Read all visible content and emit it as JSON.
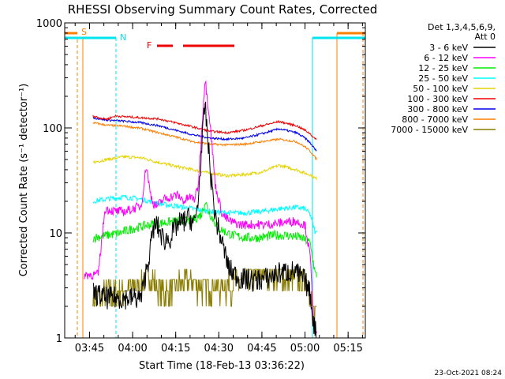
{
  "chart_data": {
    "type": "line",
    "title": "RHESSI Observing Summary Count Rates, Corrected",
    "xlabel": "Start Time (18-Feb-13 03:36:22)",
    "ylabel": "Corrected Count Rate (s⁻¹ detector⁻¹)",
    "y_scale": "log",
    "ylim": [
      1,
      1000
    ],
    "xlim": [
      3.6061,
      5.35
    ],
    "y_ticks": [
      {
        "value": 1,
        "label": "1"
      },
      {
        "value": 10,
        "label": "10"
      },
      {
        "value": 100,
        "label": "100"
      },
      {
        "value": 1000,
        "label": "1000"
      }
    ],
    "x_ticks": [
      {
        "value": 3.75,
        "label": "03:45"
      },
      {
        "value": 4.0,
        "label": "04:00"
      },
      {
        "value": 4.25,
        "label": "04:15"
      },
      {
        "value": 4.5,
        "label": "04:30"
      },
      {
        "value": 4.75,
        "label": "04:45"
      },
      {
        "value": 5.0,
        "label": "05:00"
      },
      {
        "value": 5.25,
        "label": "05:15"
      }
    ],
    "legend_header": [
      "Det 1,3,4,5,6,9,",
      "Att 0"
    ],
    "legend_position": "outside-right",
    "grid": false,
    "markers": [
      {
        "label": "S",
        "color": "#ff7f00"
      },
      {
        "label": "N",
        "color": "#00e5ee"
      },
      {
        "label": "F",
        "color": "#ee0000"
      }
    ],
    "series": [
      {
        "name": "3 - 6 keV",
        "color": "#000000",
        "x": [
          3.77,
          3.84,
          3.97,
          4.05,
          4.08,
          4.1,
          4.12,
          4.14,
          4.18,
          4.22,
          4.26,
          4.3,
          4.33,
          4.36,
          4.38,
          4.4,
          4.42,
          4.45,
          4.48,
          4.52,
          4.56,
          4.62,
          4.7,
          4.78,
          4.86,
          4.94,
          5.0,
          5.03,
          5.05,
          5.07
        ],
        "y": [
          2.7,
          2.4,
          2.4,
          2.4,
          4.5,
          6.5,
          11,
          12,
          8.5,
          9,
          12,
          13,
          14,
          12,
          20,
          60,
          170,
          40,
          14,
          8,
          4.5,
          3.7,
          3.5,
          3.7,
          4.2,
          4.3,
          3.5,
          2.6,
          1.4,
          1.0
        ]
      },
      {
        "name": "6 - 12 keV",
        "color": "#ff00ff",
        "x": [
          3.72,
          3.77,
          3.8,
          3.84,
          3.9,
          3.96,
          4.0,
          4.05,
          4.08,
          4.1,
          4.12,
          4.14,
          4.18,
          4.22,
          4.26,
          4.3,
          4.33,
          4.36,
          4.38,
          4.4,
          4.42,
          4.45,
          4.48,
          4.52,
          4.56,
          4.62,
          4.7,
          4.78,
          4.86,
          4.94,
          5.0,
          5.03,
          5.05,
          5.07
        ],
        "y": [
          4,
          4,
          4,
          17,
          16,
          16,
          17,
          18,
          45,
          25,
          19,
          18,
          21,
          22,
          23,
          20,
          22,
          21,
          28,
          90,
          300,
          110,
          28,
          15,
          13,
          12,
          12,
          12,
          12.5,
          13,
          12,
          6,
          1.4,
          1.0
        ]
      },
      {
        "name": "12 - 25 keV",
        "color": "#00ee00",
        "x": [
          3.77,
          3.85,
          3.93,
          4.0,
          4.05,
          4.1,
          4.18,
          4.26,
          4.34,
          4.4,
          4.42,
          4.45,
          4.5,
          4.58,
          4.66,
          4.74,
          4.82,
          4.9,
          4.98,
          5.03,
          5.06,
          5.07
        ],
        "y": [
          9,
          9.5,
          10,
          11,
          11.5,
          12,
          12.5,
          13,
          13,
          15,
          20,
          15,
          11,
          9.5,
          9,
          9,
          9.5,
          9.5,
          9,
          8,
          4,
          4
        ]
      },
      {
        "name": "25 - 50 keV",
        "color": "#00ffff",
        "x": [
          3.77,
          3.85,
          3.95,
          4.05,
          4.15,
          4.25,
          4.35,
          4.45,
          4.55,
          4.65,
          4.75,
          4.85,
          4.95,
          5.0,
          5.03,
          5.06,
          5.07
        ],
        "y": [
          20,
          21,
          22,
          21,
          19,
          18,
          17,
          16,
          15.5,
          15.5,
          16,
          17,
          17.5,
          17,
          15,
          10,
          10
        ]
      },
      {
        "name": "50 - 100 keV",
        "color": "#e6d400",
        "x": [
          3.77,
          3.85,
          3.95,
          4.05,
          4.15,
          4.25,
          4.35,
          4.45,
          4.55,
          4.65,
          4.75,
          4.85,
          4.95,
          5.0,
          5.03,
          5.06,
          5.07
        ],
        "y": [
          47,
          50,
          53,
          52,
          47,
          43,
          40,
          37,
          35,
          36,
          38,
          44,
          40,
          37,
          36,
          33,
          33
        ]
      },
      {
        "name": "100 - 300 keV",
        "color": "#ee0000",
        "x": [
          3.77,
          3.82,
          3.85,
          3.9,
          3.95,
          4.05,
          4.15,
          4.25,
          4.35,
          4.45,
          4.55,
          4.65,
          4.75,
          4.85,
          4.95,
          5.0,
          5.03,
          5.06,
          5.07
        ],
        "y": [
          130,
          123,
          121,
          130,
          128,
          125,
          122,
          112,
          102,
          93,
          90,
          95,
          105,
          115,
          105,
          95,
          88,
          78,
          78
        ]
      },
      {
        "name": "300 - 800 keV",
        "color": "#0000ee",
        "x": [
          3.77,
          3.85,
          3.95,
          4.05,
          4.15,
          4.25,
          4.35,
          4.45,
          4.55,
          4.65,
          4.75,
          4.85,
          4.95,
          5.0,
          5.03,
          5.06,
          5.07
        ],
        "y": [
          125,
          119,
          116,
          112,
          105,
          95,
          86,
          80,
          78,
          80,
          88,
          98,
          90,
          80,
          72,
          62,
          60
        ]
      },
      {
        "name": "800 - 7000 keV",
        "color": "#ff7f00",
        "x": [
          3.77,
          3.85,
          3.95,
          4.05,
          4.15,
          4.25,
          4.35,
          4.45,
          4.55,
          4.65,
          4.75,
          4.85,
          4.95,
          5.0,
          5.03,
          5.06,
          5.07
        ],
        "y": [
          112,
          106,
          104,
          99,
          90,
          82,
          74,
          70,
          69,
          70,
          74,
          78,
          74,
          66,
          60,
          52,
          50
        ]
      },
      {
        "name": "7000 - 15000 keV",
        "color": "#8b7d00",
        "x": [
          3.77,
          3.85,
          3.95,
          4.05,
          4.1,
          4.15,
          4.2,
          4.25,
          4.3,
          4.35,
          4.4,
          4.45,
          4.5,
          4.55,
          4.6,
          4.65,
          4.7,
          4.75,
          4.8,
          4.85,
          4.9,
          4.95,
          5.0,
          5.02,
          5.04,
          5.06,
          5.07
        ],
        "y": [
          2.4,
          2.6,
          2.9,
          3.3,
          4.0,
          3.0,
          2.8,
          3.2,
          3.6,
          3.4,
          3.0,
          3.2,
          3.0,
          3.2,
          3.4,
          3.6,
          4.0,
          4.3,
          4.2,
          4.0,
          3.7,
          3.6,
          3.6,
          3.0,
          2.2,
          1.5,
          1.2
        ]
      }
    ]
  },
  "footer": {
    "date_stamp": "23-Oct-2021 08:24"
  }
}
